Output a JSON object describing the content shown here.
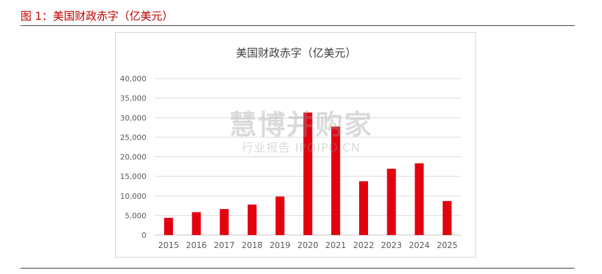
{
  "caption": "图 1：美国财政赤字（亿美元）",
  "watermark": {
    "main": "慧博并购家",
    "sub": "行业报告 IPOIPO.CN"
  },
  "colors": {
    "bar": "#e3000f",
    "grid": "#d9d9d9",
    "text": "#595959",
    "caption": "#c00000"
  },
  "chart_data": {
    "type": "bar",
    "title": "美国财政赤字（亿美元）",
    "xlabel": "",
    "ylabel": "",
    "categories": [
      "2015",
      "2016",
      "2017",
      "2018",
      "2019",
      "2020",
      "2021",
      "2022",
      "2023",
      "2024",
      "2025"
    ],
    "values": [
      4400,
      5850,
      6650,
      7790,
      9840,
      31320,
      27720,
      13750,
      16950,
      18330,
      8700
    ],
    "ylim": [
      0,
      40000
    ],
    "yticks": [
      0,
      5000,
      10000,
      15000,
      20000,
      25000,
      30000,
      35000,
      40000
    ],
    "ytick_labels": [
      "0",
      "5,000",
      "10,000",
      "15,000",
      "20,000",
      "25,000",
      "30,000",
      "35,000",
      "40,000"
    ],
    "grid": true,
    "legend": "none"
  }
}
